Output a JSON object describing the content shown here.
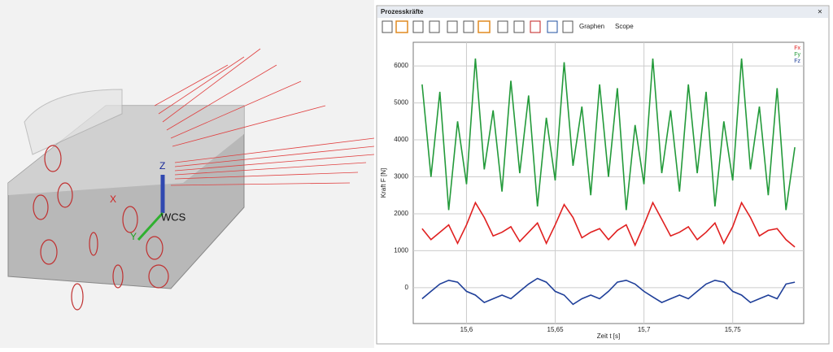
{
  "viewport": {
    "labels": [
      "Z",
      "X",
      "Y",
      "WCS"
    ]
  },
  "window": {
    "title": "Prozesskräfte",
    "menus": [
      "Graphen",
      "Scope"
    ]
  },
  "chart_data": {
    "type": "line",
    "x_label": "Zeit t [s]",
    "y_label": "Kraft F [N]",
    "x": [
      15.575,
      15.58,
      15.585,
      15.59,
      15.595,
      15.6,
      15.605,
      15.61,
      15.615,
      15.62,
      15.625,
      15.63,
      15.635,
      15.64,
      15.645,
      15.65,
      15.655,
      15.66,
      15.665,
      15.67,
      15.675,
      15.68,
      15.685,
      15.69,
      15.695,
      15.7,
      15.705,
      15.71,
      15.715,
      15.72,
      15.725,
      15.73,
      15.735,
      15.74,
      15.745,
      15.75,
      15.755,
      15.76,
      15.765,
      15.77,
      15.775,
      15.78,
      15.785
    ],
    "series": [
      {
        "name": "Fx",
        "color": "#e02020",
        "values": [
          1600,
          1300,
          1500,
          1700,
          1200,
          1700,
          2300,
          1900,
          1400,
          1500,
          1650,
          1250,
          1500,
          1750,
          1200,
          1700,
          2250,
          1900,
          1350,
          1500,
          1600,
          1300,
          1550,
          1700,
          1150,
          1700,
          2300,
          1850,
          1400,
          1500,
          1650,
          1300,
          1500,
          1750,
          1200,
          1650,
          2300,
          1900,
          1400,
          1550,
          1600,
          1300,
          1100
        ]
      },
      {
        "name": "Fy",
        "color": "#239a3a",
        "values": [
          5500,
          3000,
          5300,
          2100,
          4500,
          2800,
          6200,
          3200,
          4800,
          2600,
          5600,
          3100,
          5200,
          2200,
          4600,
          2900,
          6100,
          3300,
          4900,
          2500,
          5500,
          3000,
          5400,
          2100,
          4400,
          2800,
          6200,
          3100,
          4800,
          2600,
          5500,
          3100,
          5300,
          2200,
          4500,
          2900,
          6200,
          3200,
          4900,
          2500,
          5400,
          2100,
          3800
        ]
      },
      {
        "name": "Fz",
        "color": "#1f3f99",
        "values": [
          -300,
          -100,
          100,
          200,
          150,
          -100,
          -200,
          -400,
          -300,
          -200,
          -300,
          -100,
          100,
          250,
          150,
          -100,
          -200,
          -450,
          -300,
          -200,
          -300,
          -100,
          150,
          200,
          100,
          -100,
          -250,
          -400,
          -300,
          -200,
          -300,
          -100,
          100,
          200,
          150,
          -100,
          -200,
          -400,
          -300,
          -200,
          -300,
          100,
          150
        ]
      }
    ],
    "xlim": [
      15.57,
      15.79
    ],
    "ylim": [
      -970,
      6640
    ],
    "xticks": [
      {
        "value": 15.6,
        "label": "15,6"
      },
      {
        "value": 15.65,
        "label": "15,65"
      },
      {
        "value": 15.7,
        "label": "15,7"
      },
      {
        "value": 15.75,
        "label": "15,75"
      }
    ],
    "yticks": [
      0,
      1000,
      2000,
      3000,
      4000,
      5000,
      6000
    ],
    "grid": true,
    "legend": "top-right"
  }
}
